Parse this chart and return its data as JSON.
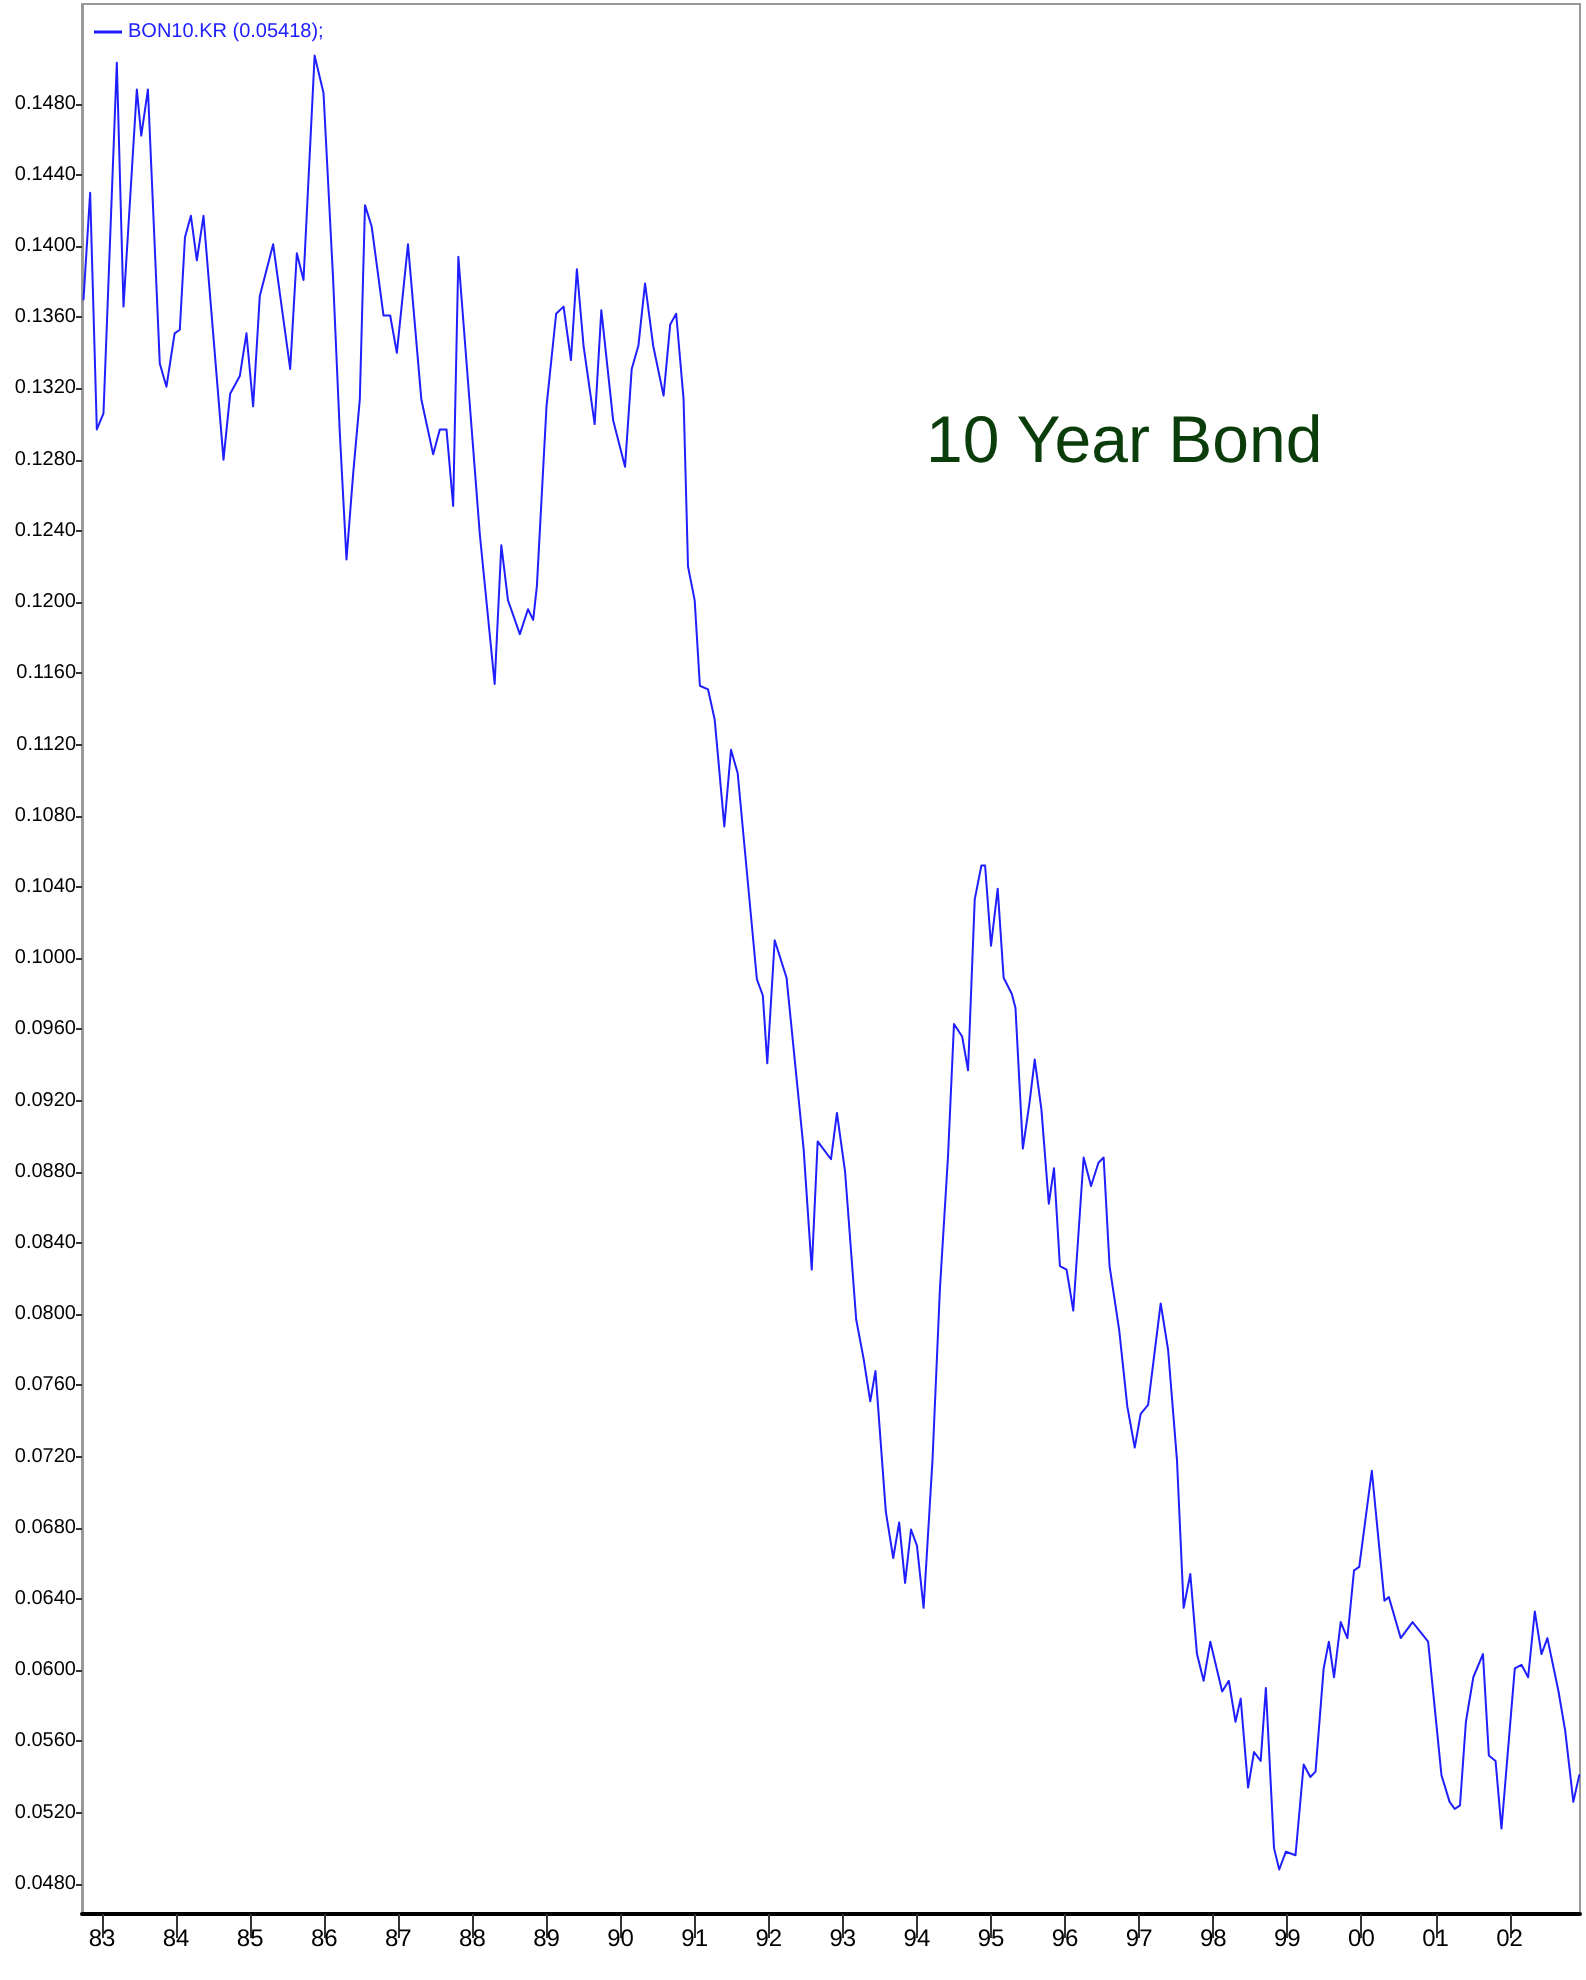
{
  "chart_data": {
    "type": "line",
    "title": "10 Year Bond",
    "x": [
      1982.75,
      1982.84,
      1982.93,
      1983.02,
      1983.2,
      1983.29,
      1983.47,
      1983.53,
      1983.62,
      1983.78,
      1983.87,
      1983.98,
      1984.05,
      1984.12,
      1984.2,
      1984.28,
      1984.37,
      1984.64,
      1984.73,
      1984.86,
      1984.95,
      1985.04,
      1985.13,
      1985.31,
      1985.54,
      1985.63,
      1985.72,
      1985.87,
      1985.99,
      1986.12,
      1986.21,
      1986.3,
      1986.39,
      1986.48,
      1986.55,
      1986.64,
      1986.8,
      1986.89,
      1986.98,
      1987.13,
      1987.31,
      1987.47,
      1987.56,
      1987.65,
      1987.74,
      1987.81,
      1988.1,
      1988.3,
      1988.39,
      1988.48,
      1988.64,
      1988.75,
      1988.82,
      1988.87,
      1989.0,
      1989.13,
      1989.23,
      1989.33,
      1989.41,
      1989.5,
      1989.65,
      1989.74,
      1989.9,
      1990.06,
      1990.15,
      1990.24,
      1990.33,
      1990.44,
      1990.58,
      1990.67,
      1990.75,
      1990.85,
      1990.91,
      1991.0,
      1991.07,
      1991.18,
      1991.27,
      1991.4,
      1991.49,
      1991.58,
      1991.84,
      1991.92,
      1991.98,
      1992.08,
      1992.24,
      1992.47,
      1992.58,
      1992.66,
      1992.84,
      1992.92,
      1993.03,
      1993.18,
      1993.28,
      1993.37,
      1993.44,
      1993.58,
      1993.68,
      1993.76,
      1993.84,
      1993.92,
      1994.0,
      1994.09,
      1994.21,
      1994.31,
      1994.42,
      1994.5,
      1994.61,
      1994.69,
      1994.78,
      1994.87,
      1994.92,
      1995.0,
      1995.09,
      1995.17,
      1995.28,
      1995.33,
      1995.43,
      1995.52,
      1995.59,
      1995.68,
      1995.78,
      1995.85,
      1995.93,
      1996.02,
      1996.11,
      1996.25,
      1996.35,
      1996.45,
      1996.52,
      1996.6,
      1996.73,
      1996.84,
      1996.94,
      1997.02,
      1997.12,
      1997.29,
      1997.39,
      1997.51,
      1997.6,
      1997.69,
      1997.78,
      1997.87,
      1997.96,
      1998.12,
      1998.21,
      1998.3,
      1998.37,
      1998.47,
      1998.55,
      1998.64,
      1998.71,
      1998.82,
      1998.89,
      1998.98,
      1999.11,
      1999.22,
      1999.31,
      1999.38,
      1999.49,
      1999.56,
      1999.63,
      1999.72,
      1999.81,
      1999.9,
      1999.97,
      2000.14,
      2000.31,
      2000.37,
      2000.53,
      2000.69,
      2000.9,
      2001.08,
      2001.19,
      2001.26,
      2001.33,
      2001.41,
      2001.51,
      2001.64,
      2001.72,
      2001.81,
      2001.89,
      2002.07,
      2002.16,
      2002.25,
      2002.34,
      2002.43,
      2002.51,
      2002.66,
      2002.75,
      2002.86,
      2002.94
    ],
    "series": [
      {
        "name": "BON10.KR (0.05418);",
        "color": "#1f1fff",
        "values": [
          0.137,
          0.143,
          0.1297,
          0.1306,
          0.1503,
          0.1366,
          0.1488,
          0.1462,
          0.1488,
          0.1334,
          0.1321,
          0.1351,
          0.1353,
          0.1405,
          0.1417,
          0.1392,
          0.1417,
          0.128,
          0.1317,
          0.1327,
          0.1351,
          0.131,
          0.1372,
          0.1401,
          0.1331,
          0.1396,
          0.1381,
          0.1507,
          0.1486,
          0.1381,
          0.1295,
          0.1224,
          0.1272,
          0.1314,
          0.1423,
          0.1411,
          0.1361,
          0.1361,
          0.134,
          0.1401,
          0.1314,
          0.1283,
          0.1297,
          0.1297,
          0.1254,
          0.1394,
          0.1238,
          0.1154,
          0.1232,
          0.1201,
          0.1182,
          0.1196,
          0.119,
          0.1209,
          0.131,
          0.1362,
          0.1366,
          0.1336,
          0.1387,
          0.1344,
          0.13,
          0.1364,
          0.1302,
          0.1276,
          0.1331,
          0.1344,
          0.1379,
          0.1344,
          0.1316,
          0.1356,
          0.1362,
          0.1314,
          0.122,
          0.1201,
          0.1153,
          0.1151,
          0.1134,
          0.1074,
          0.1117,
          0.1104,
          0.0988,
          0.0979,
          0.0941,
          0.101,
          0.0989,
          0.0893,
          0.0825,
          0.0897,
          0.0887,
          0.0913,
          0.088,
          0.0797,
          0.0775,
          0.0751,
          0.0768,
          0.0689,
          0.0663,
          0.0683,
          0.0649,
          0.0679,
          0.067,
          0.0635,
          0.0718,
          0.0814,
          0.0889,
          0.0963,
          0.0956,
          0.0937,
          0.1033,
          0.1052,
          0.1052,
          0.1007,
          0.1039,
          0.0989,
          0.098,
          0.0972,
          0.0893,
          0.0919,
          0.0943,
          0.0915,
          0.0862,
          0.0882,
          0.0827,
          0.0825,
          0.0802,
          0.0888,
          0.0872,
          0.0885,
          0.0888,
          0.0827,
          0.0791,
          0.0748,
          0.0725,
          0.0744,
          0.0749,
          0.0806,
          0.078,
          0.0718,
          0.0635,
          0.0654,
          0.0609,
          0.0594,
          0.0616,
          0.0588,
          0.0594,
          0.0571,
          0.0584,
          0.0534,
          0.0554,
          0.0549,
          0.059,
          0.05,
          0.0488,
          0.0498,
          0.0496,
          0.0547,
          0.054,
          0.0543,
          0.0601,
          0.0616,
          0.0596,
          0.0627,
          0.0618,
          0.0656,
          0.0658,
          0.0712,
          0.0639,
          0.0641,
          0.0618,
          0.0627,
          0.0616,
          0.0541,
          0.0526,
          0.0522,
          0.0524,
          0.0571,
          0.0596,
          0.0609,
          0.0552,
          0.0549,
          0.0511,
          0.0601,
          0.0603,
          0.0596,
          0.0633,
          0.0609,
          0.0618,
          0.0588,
          0.0566,
          0.0526,
          0.0541
        ]
      }
    ],
    "xlim": [
      1982.73,
      2002.95
    ],
    "xticks": [
      {
        "value": 1983,
        "label": "83"
      },
      {
        "value": 1984,
        "label": "84"
      },
      {
        "value": 1985,
        "label": "85"
      },
      {
        "value": 1986,
        "label": "86"
      },
      {
        "value": 1987,
        "label": "87"
      },
      {
        "value": 1988,
        "label": "88"
      },
      {
        "value": 1989,
        "label": "89"
      },
      {
        "value": 1990,
        "label": "90"
      },
      {
        "value": 1991,
        "label": "91"
      },
      {
        "value": 1992,
        "label": "92"
      },
      {
        "value": 1993,
        "label": "93"
      },
      {
        "value": 1994,
        "label": "94"
      },
      {
        "value": 1995,
        "label": "95"
      },
      {
        "value": 1996,
        "label": "96"
      },
      {
        "value": 1997,
        "label": "97"
      },
      {
        "value": 1998,
        "label": "98"
      },
      {
        "value": 1999,
        "label": "99"
      },
      {
        "value": 2000,
        "label": "00"
      },
      {
        "value": 2001,
        "label": "01"
      },
      {
        "value": 2002,
        "label": "02"
      }
    ],
    "ylim": [
      0.0463,
      0.1536
    ],
    "yticks": [
      {
        "value": 0.048,
        "label": "0.0480"
      },
      {
        "value": 0.052,
        "label": "0.0520"
      },
      {
        "value": 0.056,
        "label": "0.0560"
      },
      {
        "value": 0.06,
        "label": "0.0600"
      },
      {
        "value": 0.064,
        "label": "0.0640"
      },
      {
        "value": 0.068,
        "label": "0.0680"
      },
      {
        "value": 0.072,
        "label": "0.0720"
      },
      {
        "value": 0.076,
        "label": "0.0760"
      },
      {
        "value": 0.08,
        "label": "0.0800"
      },
      {
        "value": 0.084,
        "label": "0.0840"
      },
      {
        "value": 0.088,
        "label": "0.0880"
      },
      {
        "value": 0.092,
        "label": "0.0920"
      },
      {
        "value": 0.096,
        "label": "0.0960"
      },
      {
        "value": 0.1,
        "label": "0.1000"
      },
      {
        "value": 0.104,
        "label": "0.1040"
      },
      {
        "value": 0.108,
        "label": "0.1080"
      },
      {
        "value": 0.112,
        "label": "0.1120"
      },
      {
        "value": 0.116,
        "label": "0.1160"
      },
      {
        "value": 0.12,
        "label": "0.1200"
      },
      {
        "value": 0.124,
        "label": "0.1240"
      },
      {
        "value": 0.128,
        "label": "0.1280"
      },
      {
        "value": 0.132,
        "label": "0.1320"
      },
      {
        "value": 0.136,
        "label": "0.1360"
      },
      {
        "value": 0.14,
        "label": "0.1400"
      },
      {
        "value": 0.144,
        "label": "0.1440"
      },
      {
        "value": 0.148,
        "label": "0.1480"
      }
    ],
    "grid": false,
    "legend": "top left",
    "marker": "none",
    "line_style": "solid"
  }
}
